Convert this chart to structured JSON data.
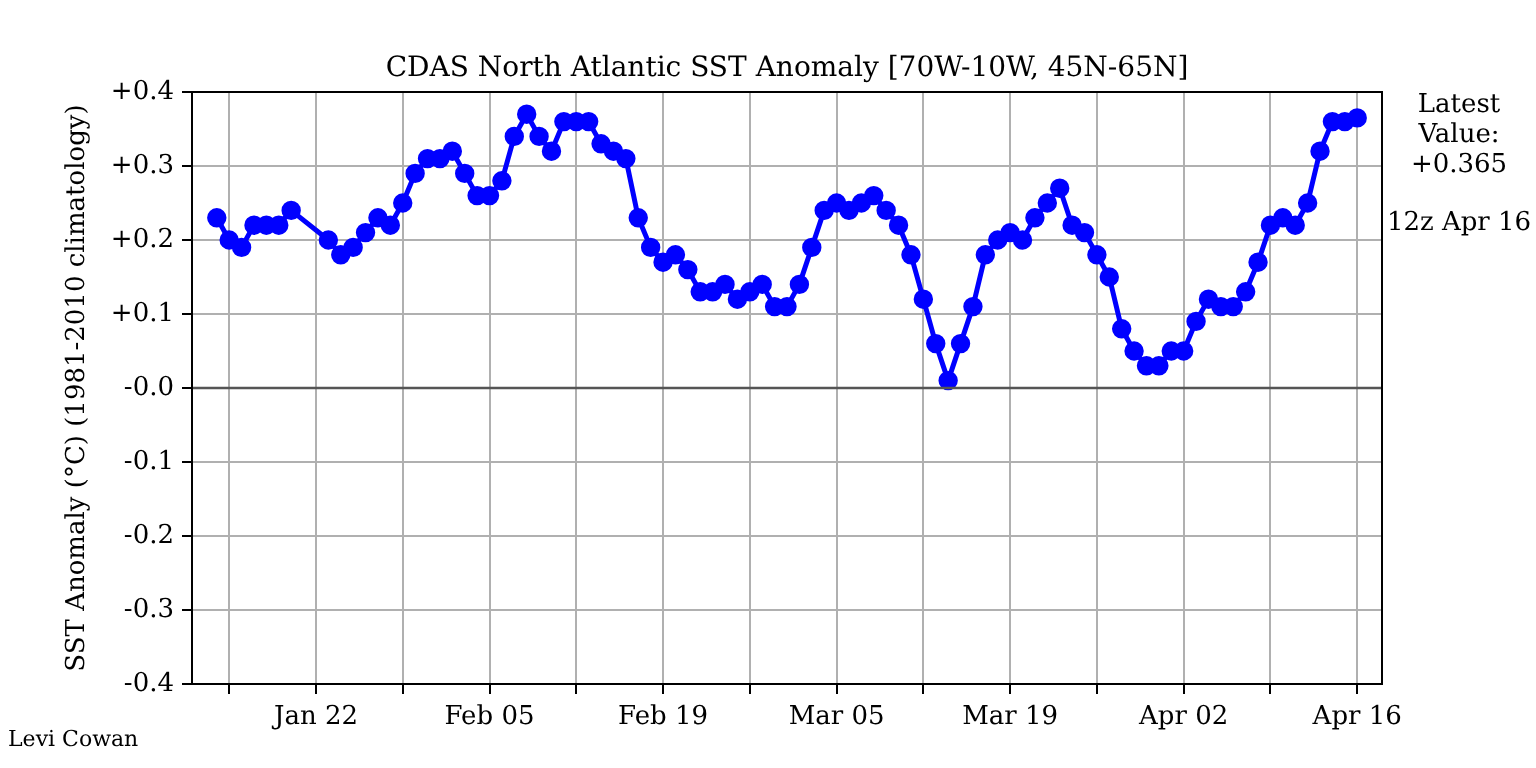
{
  "chart_data": {
    "type": "line",
    "title": "CDAS North Atlantic SST Anomaly [70W-10W, 45N-65N]",
    "ylabel": "SST Anomaly (°C) (1981-2010 climatology)",
    "x": [
      "--01-14",
      "--01-15",
      "--01-16",
      "--01-17",
      "--01-18",
      "--01-19",
      "--01-20",
      "--01-23",
      "--01-24",
      "--01-25",
      "--01-26",
      "--01-27",
      "--01-28",
      "--01-29",
      "--01-30",
      "--01-31",
      "--02-01",
      "--02-02",
      "--02-03",
      "--02-04",
      "--02-05",
      "--02-06",
      "--02-07",
      "--02-08",
      "--02-09",
      "--02-10",
      "--02-11",
      "--02-12",
      "--02-13",
      "--02-14",
      "--02-15",
      "--02-16",
      "--02-17",
      "--02-18",
      "--02-19",
      "--02-20",
      "--02-21",
      "--02-22",
      "--02-23",
      "--02-24",
      "--02-25",
      "--02-26",
      "--02-27",
      "--02-28",
      "--03-01",
      "--03-02",
      "--03-03",
      "--03-04",
      "--03-05",
      "--03-06",
      "--03-07",
      "--03-08",
      "--03-09",
      "--03-10",
      "--03-11",
      "--03-12",
      "--03-13",
      "--03-14",
      "--03-15",
      "--03-16",
      "--03-17",
      "--03-18",
      "--03-19",
      "--03-20",
      "--03-21",
      "--03-22",
      "--03-23",
      "--03-24",
      "--03-25",
      "--03-26",
      "--03-27",
      "--03-28",
      "--03-29",
      "--03-30",
      "--03-31",
      "--04-01",
      "--04-02",
      "--04-03",
      "--04-04",
      "--04-05",
      "--04-06",
      "--04-07",
      "--04-08",
      "--04-09",
      "--04-10",
      "--04-11",
      "--04-12",
      "--04-13",
      "--04-14",
      "--04-15",
      "--04-16"
    ],
    "series": [
      {
        "color": "#0000ff",
        "values": [
          0.23,
          0.2,
          0.19,
          0.22,
          0.22,
          0.22,
          0.24,
          0.2,
          0.18,
          0.19,
          0.21,
          0.23,
          0.22,
          0.25,
          0.29,
          0.31,
          0.31,
          0.32,
          0.29,
          0.26,
          0.26,
          0.28,
          0.34,
          0.37,
          0.34,
          0.32,
          0.36,
          0.36,
          0.36,
          0.33,
          0.32,
          0.31,
          0.23,
          0.19,
          0.17,
          0.18,
          0.16,
          0.13,
          0.13,
          0.14,
          0.12,
          0.13,
          0.14,
          0.11,
          0.11,
          0.14,
          0.19,
          0.24,
          0.25,
          0.24,
          0.25,
          0.26,
          0.24,
          0.22,
          0.18,
          0.12,
          0.06,
          0.01,
          0.06,
          0.11,
          0.18,
          0.2,
          0.21,
          0.2,
          0.23,
          0.25,
          0.27,
          0.22,
          0.21,
          0.18,
          0.15,
          0.08,
          0.05,
          0.03,
          0.03,
          0.05,
          0.05,
          0.09,
          0.12,
          0.11,
          0.11,
          0.13,
          0.17,
          0.22,
          0.23,
          0.22,
          0.25,
          0.32,
          0.36,
          0.36,
          0.365
        ]
      }
    ],
    "xlim": [
      "--01-12",
      "--04-18"
    ],
    "xticks": [
      {
        "value": "--01-15",
        "label": null
      },
      {
        "value": "--01-22",
        "label": "Jan 22"
      },
      {
        "value": "--01-29",
        "label": null
      },
      {
        "value": "--02-05",
        "label": "Feb 05"
      },
      {
        "value": "--02-12",
        "label": null
      },
      {
        "value": "--02-19",
        "label": "Feb 19"
      },
      {
        "value": "--02-26",
        "label": null
      },
      {
        "value": "--03-05",
        "label": "Mar 05"
      },
      {
        "value": "--03-12",
        "label": null
      },
      {
        "value": "--03-19",
        "label": "Mar 19"
      },
      {
        "value": "--03-26",
        "label": null
      },
      {
        "value": "--04-02",
        "label": "Apr 02"
      },
      {
        "value": "--04-09",
        "label": null
      },
      {
        "value": "--04-16",
        "label": "Apr 16"
      }
    ],
    "ylim": [
      -0.4,
      0.4
    ],
    "yticks": [
      {
        "value": -0.4,
        "label": "-0.4"
      },
      {
        "value": -0.3,
        "label": "-0.3"
      },
      {
        "value": -0.2,
        "label": "-0.2"
      },
      {
        "value": -0.1,
        "label": "-0.1"
      },
      {
        "value": 0,
        "label": "-0.0"
      },
      {
        "value": 0.1,
        "label": "+0.1"
      },
      {
        "value": 0.2,
        "label": "+0.2"
      },
      {
        "value": 0.3,
        "label": "+0.3"
      },
      {
        "value": 0.4,
        "label": "+0.4"
      }
    ],
    "ref_lines": [
      {
        "axis": "y",
        "value": 0,
        "color": "#555555"
      }
    ],
    "annotations": [
      "Latest Value: +0.365",
      "12z Apr 16",
      "Levi Cowan"
    ],
    "grid": true,
    "legend": false,
    "marker": "circle",
    "line_style": "solid"
  }
}
